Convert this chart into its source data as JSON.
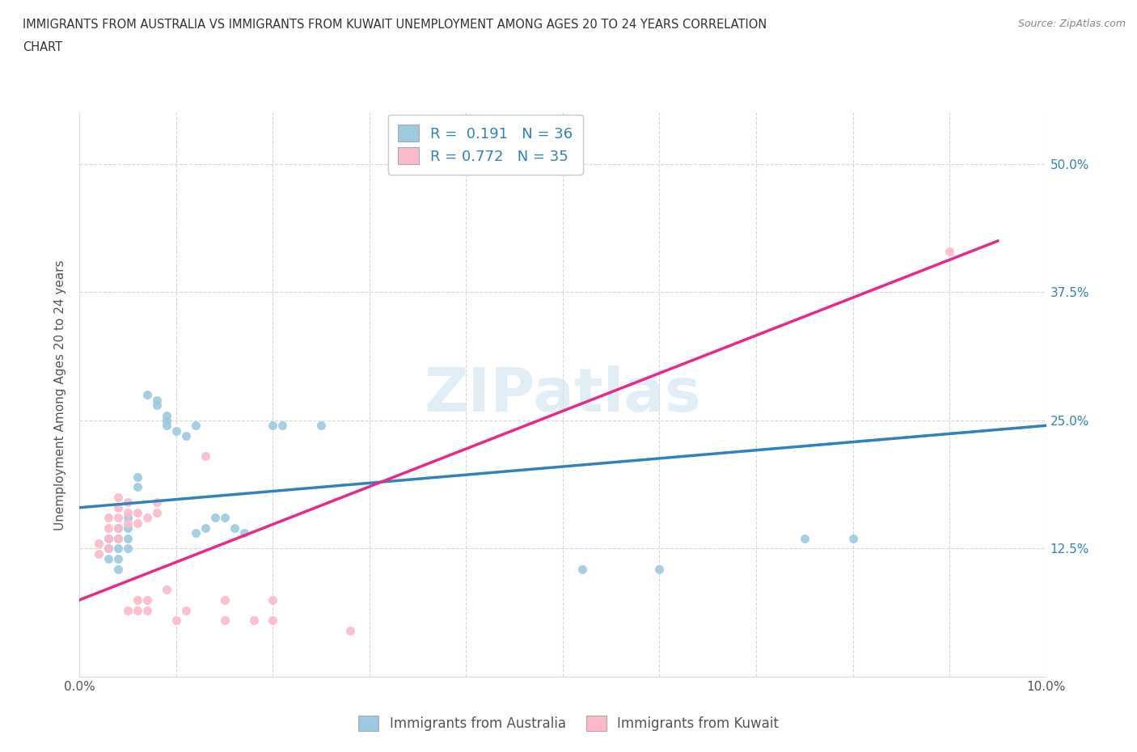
{
  "title_line1": "IMMIGRANTS FROM AUSTRALIA VS IMMIGRANTS FROM KUWAIT UNEMPLOYMENT AMONG AGES 20 TO 24 YEARS CORRELATION",
  "title_line2": "CHART",
  "source_text": "Source: ZipAtlas.com",
  "ylabel": "Unemployment Among Ages 20 to 24 years",
  "xlim": [
    0.0,
    0.1
  ],
  "ylim": [
    0.0,
    0.55
  ],
  "x_ticks": [
    0.0,
    0.01,
    0.02,
    0.03,
    0.04,
    0.05,
    0.06,
    0.07,
    0.08,
    0.09,
    0.1
  ],
  "y_ticks": [
    0.0,
    0.125,
    0.25,
    0.375,
    0.5
  ],
  "watermark": "ZIPatlas",
  "color_australia": "#9ecae1",
  "color_kuwait": "#fcb9c9",
  "trendline_australia_color": "#3182bd",
  "trendline_kuwait_color": "#e7298a",
  "australia_scatter": [
    [
      0.003,
      0.135
    ],
    [
      0.003,
      0.125
    ],
    [
      0.003,
      0.115
    ],
    [
      0.004,
      0.145
    ],
    [
      0.004,
      0.135
    ],
    [
      0.004,
      0.125
    ],
    [
      0.004,
      0.115
    ],
    [
      0.004,
      0.105
    ],
    [
      0.005,
      0.155
    ],
    [
      0.005,
      0.145
    ],
    [
      0.005,
      0.135
    ],
    [
      0.005,
      0.125
    ],
    [
      0.006,
      0.195
    ],
    [
      0.006,
      0.185
    ],
    [
      0.007,
      0.275
    ],
    [
      0.008,
      0.27
    ],
    [
      0.008,
      0.265
    ],
    [
      0.009,
      0.255
    ],
    [
      0.009,
      0.25
    ],
    [
      0.009,
      0.245
    ],
    [
      0.01,
      0.24
    ],
    [
      0.011,
      0.235
    ],
    [
      0.012,
      0.245
    ],
    [
      0.012,
      0.14
    ],
    [
      0.013,
      0.145
    ],
    [
      0.014,
      0.155
    ],
    [
      0.015,
      0.155
    ],
    [
      0.016,
      0.145
    ],
    [
      0.017,
      0.14
    ],
    [
      0.02,
      0.245
    ],
    [
      0.021,
      0.245
    ],
    [
      0.025,
      0.245
    ],
    [
      0.052,
      0.105
    ],
    [
      0.06,
      0.105
    ],
    [
      0.075,
      0.135
    ],
    [
      0.08,
      0.135
    ]
  ],
  "kuwait_scatter": [
    [
      0.002,
      0.13
    ],
    [
      0.002,
      0.12
    ],
    [
      0.003,
      0.155
    ],
    [
      0.003,
      0.145
    ],
    [
      0.003,
      0.135
    ],
    [
      0.003,
      0.125
    ],
    [
      0.004,
      0.175
    ],
    [
      0.004,
      0.165
    ],
    [
      0.004,
      0.155
    ],
    [
      0.004,
      0.145
    ],
    [
      0.004,
      0.135
    ],
    [
      0.005,
      0.17
    ],
    [
      0.005,
      0.16
    ],
    [
      0.005,
      0.15
    ],
    [
      0.005,
      0.065
    ],
    [
      0.006,
      0.16
    ],
    [
      0.006,
      0.15
    ],
    [
      0.006,
      0.075
    ],
    [
      0.006,
      0.065
    ],
    [
      0.007,
      0.155
    ],
    [
      0.007,
      0.075
    ],
    [
      0.007,
      0.065
    ],
    [
      0.008,
      0.17
    ],
    [
      0.008,
      0.16
    ],
    [
      0.009,
      0.085
    ],
    [
      0.01,
      0.055
    ],
    [
      0.011,
      0.065
    ],
    [
      0.013,
      0.215
    ],
    [
      0.015,
      0.075
    ],
    [
      0.015,
      0.055
    ],
    [
      0.018,
      0.055
    ],
    [
      0.02,
      0.075
    ],
    [
      0.02,
      0.055
    ],
    [
      0.028,
      0.045
    ],
    [
      0.09,
      0.415
    ]
  ],
  "trendline_australia": [
    [
      0.0,
      0.165
    ],
    [
      0.1,
      0.245
    ]
  ],
  "trendline_kuwait": [
    [
      0.0,
      0.075
    ],
    [
      0.095,
      0.425
    ]
  ],
  "grid_color": "#cccccc",
  "bg_color": "#ffffff"
}
